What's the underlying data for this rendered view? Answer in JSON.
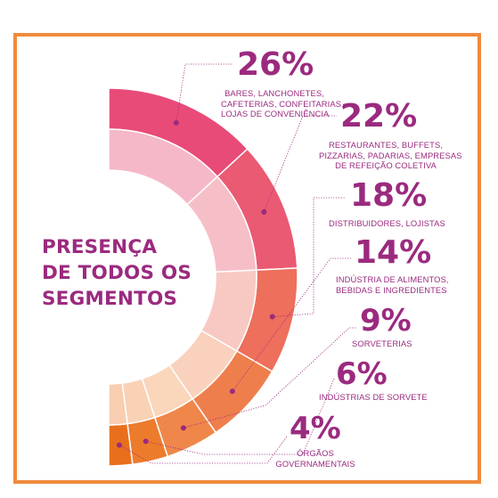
{
  "headline": [
    "PRESENÇA",
    "DE TODOS OS",
    "SEGMENTOS"
  ],
  "chart_data": {
    "type": "pie",
    "variant": "half-donut",
    "values": [
      26,
      22,
      18,
      14,
      9,
      6,
      4
    ],
    "labels": [
      "26%",
      "22%",
      "18%",
      "14%",
      "9%",
      "6%",
      "4%"
    ],
    "segments": [
      [
        "BARES, LANCHONETES,",
        "CAFETERIAS, CONFEITARIAS,",
        "LOJAS DE CONVENIÊNCIA"
      ],
      [
        "RESTAURANTES, BUFFETS,",
        "PIZZARIAS, PADARIAS, EMPRESAS",
        "DE REFEIÇÃO COLETIVA"
      ],
      [
        "DISTRIBUIDORES, LOJISTAS"
      ],
      [
        "INDÚSTRIA DE ALIMENTOS,",
        "BEBIDAS E INGREDIENTES"
      ],
      [
        "SORVETERIAS"
      ],
      [
        "INDÚSTRIAS DE SORVETE"
      ],
      [
        "ÓRGÃOS",
        "GOVERNAMENTAIS"
      ]
    ],
    "outer_colors": [
      "#e84b78",
      "#ea5a72",
      "#ed6f5c",
      "#ee7f4d",
      "#ef874a",
      "#ec7b2c",
      "#e8701d"
    ],
    "inner_colors": [
      "#f5b8c8",
      "#f6bfc8",
      "#f8c9c3",
      "#f9d1bd",
      "#fad6bb",
      "#f9d2b6",
      "#f8cdb0"
    ],
    "accent": "#9b2a7f",
    "frame_color": "#f08a3c"
  }
}
